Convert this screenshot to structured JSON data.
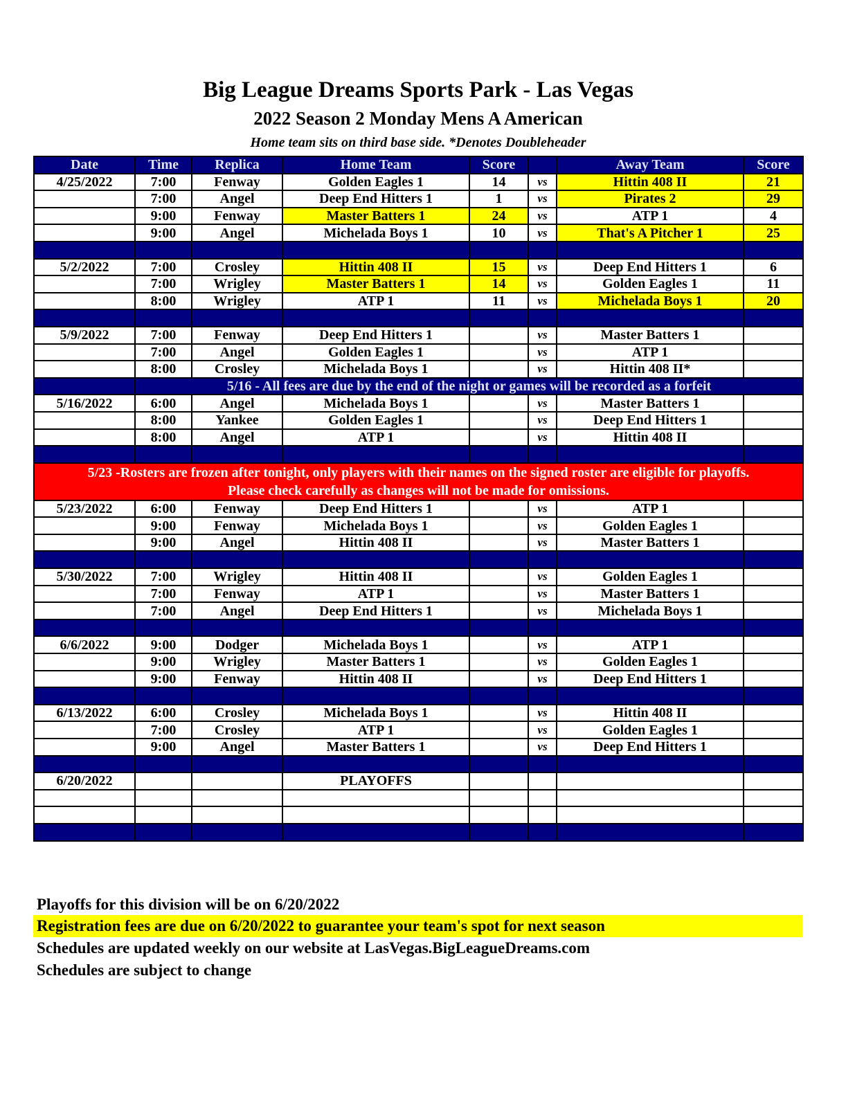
{
  "header": {
    "title": "Big League Dreams Sports Park - Las Vegas",
    "subtitle": "2022 Season 2 Monday Mens A American",
    "note": "Home team sits on third base side.  *Denotes Doubleheader"
  },
  "colors": {
    "header_bg": "#000080",
    "winner_highlight": "#ffff00",
    "alert_bg": "#ff0000"
  },
  "columns": [
    "Date",
    "Time",
    "Replica",
    "Home Team",
    "Score",
    "",
    "Away Team",
    "Score"
  ],
  "rows": [
    {
      "type": "game",
      "date": "4/25/2022",
      "time": "7:00",
      "field": "Fenway",
      "home": "Golden Eagles 1",
      "home_score": "14",
      "vs": "vs",
      "away": "Hittin 408 II",
      "away_score": "21",
      "winner": "away"
    },
    {
      "type": "game",
      "date": "",
      "time": "7:00",
      "field": "Angel",
      "home": "Deep End Hitters 1",
      "home_score": "1",
      "vs": "vs",
      "away": "Pirates 2",
      "away_score": "29",
      "winner": "away"
    },
    {
      "type": "game",
      "date": "",
      "time": "9:00",
      "field": "Fenway",
      "home": "Master Batters 1",
      "home_score": "24",
      "vs": "vs",
      "away": "ATP 1",
      "away_score": "4",
      "winner": "home"
    },
    {
      "type": "game",
      "date": "",
      "time": "9:00",
      "field": "Angel",
      "home": "Michelada Boys 1",
      "home_score": "10",
      "vs": "vs",
      "away": "That's A Pitcher 1",
      "away_score": "25",
      "winner": "away"
    },
    {
      "type": "spacer"
    },
    {
      "type": "game",
      "date": "5/2/2022",
      "time": "7:00",
      "field": "Crosley",
      "home": "Hittin 408 II",
      "home_score": "15",
      "vs": "vs",
      "away": "Deep End Hitters 1",
      "away_score": "6",
      "winner": "home"
    },
    {
      "type": "game",
      "date": "",
      "time": "7:00",
      "field": "Wrigley",
      "home": "Master Batters 1",
      "home_score": "14",
      "vs": "vs",
      "away": "Golden Eagles 1",
      "away_score": "11",
      "winner": "home"
    },
    {
      "type": "game",
      "date": "",
      "time": "8:00",
      "field": "Wrigley",
      "home": "ATP 1",
      "home_score": "11",
      "vs": "vs",
      "away": "Michelada Boys 1",
      "away_score": "20",
      "winner": "away"
    },
    {
      "type": "spacer"
    },
    {
      "type": "game",
      "date": "5/9/2022",
      "time": "7:00",
      "field": "Fenway",
      "home": "Deep End Hitters 1",
      "home_score": "",
      "vs": "vs",
      "away": "Master Batters 1",
      "away_score": ""
    },
    {
      "type": "game",
      "date": "",
      "time": "7:00",
      "field": "Angel",
      "home": "Golden Eagles 1",
      "home_score": "",
      "vs": "vs",
      "away": "ATP 1",
      "away_score": ""
    },
    {
      "type": "game",
      "date": "",
      "time": "8:00",
      "field": "Crosley",
      "home": "Michelada Boys 1",
      "home_score": "",
      "vs": "vs",
      "away": "Hittin 408 II*",
      "away_score": ""
    },
    {
      "type": "notice",
      "text": "5/16 - All fees are due by the end of the night or games will be recorded as a forfeit"
    },
    {
      "type": "game",
      "date": "5/16/2022",
      "time": "6:00",
      "field": "Angel",
      "home": "Michelada Boys 1",
      "home_score": "",
      "vs": "vs",
      "away": "Master Batters 1",
      "away_score": ""
    },
    {
      "type": "game",
      "date": "",
      "time": "8:00",
      "field": "Yankee",
      "home": "Golden Eagles 1",
      "home_score": "",
      "vs": "vs",
      "away": "Deep End Hitters 1",
      "away_score": ""
    },
    {
      "type": "game",
      "date": "",
      "time": "8:00",
      "field": "Angel",
      "home": "ATP 1",
      "home_score": "",
      "vs": "vs",
      "away": "Hittin 408 II",
      "away_score": ""
    },
    {
      "type": "spacer"
    },
    {
      "type": "alert",
      "line1": "5/23 -Rosters are frozen after tonight, only players with their names on the signed roster are eligible for playoffs.",
      "line2": "Please check carefully as changes will not be made for omissions."
    },
    {
      "type": "game",
      "date": "5/23/2022",
      "time": "6:00",
      "field": "Fenway",
      "home": "Deep End Hitters 1",
      "home_score": "",
      "vs": "vs",
      "away": "ATP 1",
      "away_score": ""
    },
    {
      "type": "game",
      "date": "",
      "time": "9:00",
      "field": "Fenway",
      "home": "Michelada Boys 1",
      "home_score": "",
      "vs": "vs",
      "away": "Golden Eagles 1",
      "away_score": ""
    },
    {
      "type": "game",
      "date": "",
      "time": "9:00",
      "field": "Angel",
      "home": "Hittin 408 II",
      "home_score": "",
      "vs": "vs",
      "away": "Master Batters 1",
      "away_score": ""
    },
    {
      "type": "spacer"
    },
    {
      "type": "game",
      "date": "5/30/2022",
      "time": "7:00",
      "field": "Wrigley",
      "home": "Hittin 408 II",
      "home_score": "",
      "vs": "vs",
      "away": "Golden Eagles 1",
      "away_score": ""
    },
    {
      "type": "game",
      "date": "",
      "time": "7:00",
      "field": "Fenway",
      "home": "ATP 1",
      "home_score": "",
      "vs": "vs",
      "away": "Master Batters 1",
      "away_score": ""
    },
    {
      "type": "game",
      "date": "",
      "time": "7:00",
      "field": "Angel",
      "home": "Deep End Hitters 1",
      "home_score": "",
      "vs": "vs",
      "away": "Michelada Boys 1",
      "away_score": ""
    },
    {
      "type": "spacer"
    },
    {
      "type": "game",
      "date": "6/6/2022",
      "time": "9:00",
      "field": "Dodger",
      "home": "Michelada Boys 1",
      "home_score": "",
      "vs": "vs",
      "away": "ATP 1",
      "away_score": ""
    },
    {
      "type": "game",
      "date": "",
      "time": "9:00",
      "field": "Wrigley",
      "home": "Master Batters 1",
      "home_score": "",
      "vs": "vs",
      "away": "Golden Eagles 1",
      "away_score": ""
    },
    {
      "type": "game",
      "date": "",
      "time": "9:00",
      "field": "Fenway",
      "home": "Hittin 408 II",
      "home_score": "",
      "vs": "vs",
      "away": "Deep End Hitters 1",
      "away_score": ""
    },
    {
      "type": "spacer"
    },
    {
      "type": "game",
      "date": "6/13/2022",
      "time": "6:00",
      "field": "Crosley",
      "home": "Michelada Boys 1",
      "home_score": "",
      "vs": "vs",
      "away": "Hittin 408 II",
      "away_score": ""
    },
    {
      "type": "game",
      "date": "",
      "time": "7:00",
      "field": "Crosley",
      "home": "ATP 1",
      "home_score": "",
      "vs": "vs",
      "away": "Golden Eagles 1",
      "away_score": ""
    },
    {
      "type": "game",
      "date": "",
      "time": "9:00",
      "field": "Angel",
      "home": "Master Batters 1",
      "home_score": "",
      "vs": "vs",
      "away": "Deep End Hitters 1",
      "away_score": ""
    },
    {
      "type": "spacer"
    },
    {
      "type": "game",
      "date": "6/20/2022",
      "time": "",
      "field": "",
      "home": "PLAYOFFS",
      "home_score": "",
      "vs": "",
      "away": "",
      "away_score": ""
    },
    {
      "type": "game",
      "date": "",
      "time": "",
      "field": "",
      "home": "",
      "home_score": "",
      "vs": "",
      "away": "",
      "away_score": ""
    },
    {
      "type": "game",
      "date": "",
      "time": "",
      "field": "",
      "home": "",
      "home_score": "",
      "vs": "",
      "away": "",
      "away_score": ""
    },
    {
      "type": "spacer"
    }
  ],
  "footer": {
    "line1": "Playoffs for this division will be on 6/20/2022",
    "line2": "Registration fees are due on 6/20/2022 to guarantee your team's spot for next season",
    "line3": "Schedules are updated weekly on our website at LasVegas.BigLeagueDreams.com",
    "line4": "Schedules are subject to change"
  }
}
